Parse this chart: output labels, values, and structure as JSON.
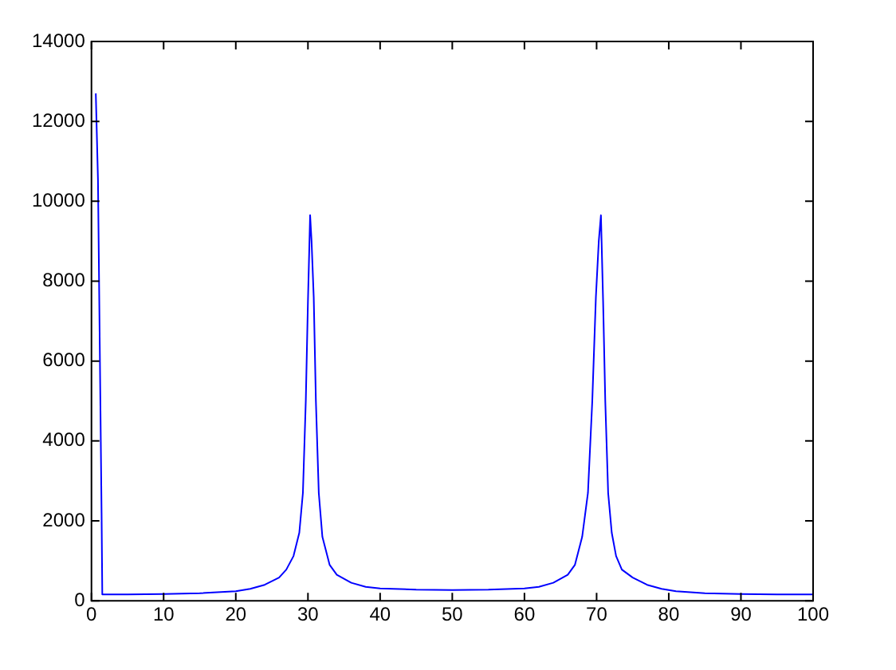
{
  "chart_data": {
    "type": "line",
    "x": [
      0.6,
      0.9,
      1.15,
      1.4,
      1.5,
      5,
      10,
      15,
      20,
      22,
      24,
      26,
      27,
      28,
      28.8,
      29.3,
      29.7,
      30,
      30.3,
      30.5,
      30.8,
      31.1,
      31.5,
      32,
      33,
      34,
      36,
      38,
      40,
      45,
      50,
      55,
      60,
      62,
      64,
      66,
      67,
      68,
      68.8,
      69.4,
      69.9,
      70.3,
      70.6,
      70.9,
      71.2,
      71.6,
      72.1,
      72.7,
      73.5,
      75,
      77,
      79,
      81,
      85,
      90,
      95,
      100
    ],
    "series": [
      {
        "color": "#0000ff",
        "values": [
          12700,
          10560,
          6400,
          2210,
          160,
          160,
          170,
          190,
          240,
          300,
          400,
          580,
          780,
          1120,
          1700,
          2700,
          5000,
          7500,
          9650,
          9000,
          7600,
          5000,
          2700,
          1600,
          900,
          650,
          450,
          350,
          310,
          280,
          270,
          280,
          310,
          350,
          450,
          650,
          900,
          1600,
          2700,
          5000,
          7600,
          9000,
          9650,
          7500,
          5000,
          2700,
          1700,
          1120,
          780,
          580,
          400,
          300,
          240,
          190,
          170,
          160,
          160
        ]
      }
    ],
    "xlim": [
      0,
      100
    ],
    "xticks": [
      0,
      10,
      20,
      30,
      40,
      50,
      60,
      70,
      80,
      90,
      100
    ],
    "ylim": [
      0,
      14000
    ],
    "yticks": [
      0,
      2000,
      4000,
      6000,
      8000,
      10000,
      12000,
      14000
    ],
    "grid": false,
    "legend": false,
    "marker": "none",
    "line_style": "solid"
  }
}
